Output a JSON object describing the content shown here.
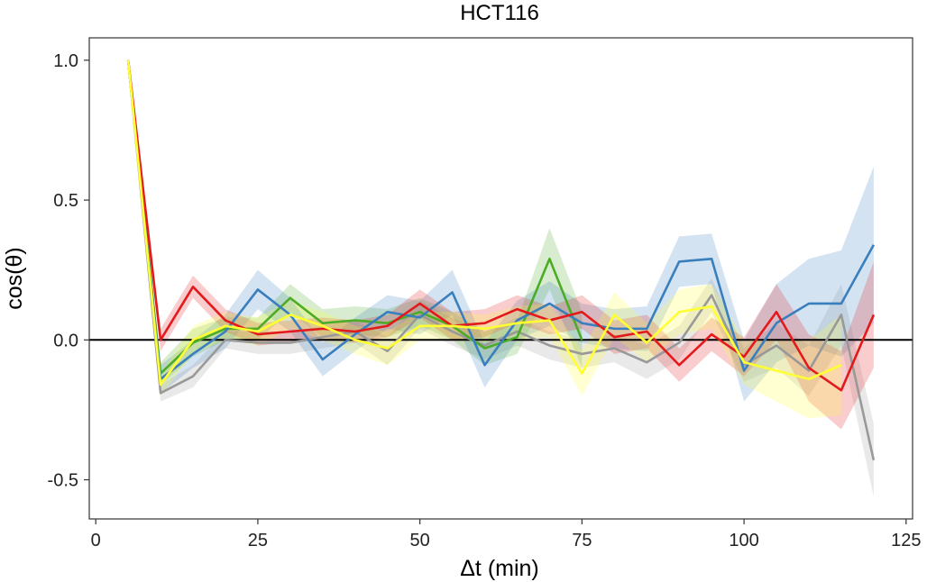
{
  "chart_data": {
    "type": "line",
    "title": "HCT116",
    "xlabel": "Δt (min)",
    "ylabel": "cos(θ)",
    "xlim": [
      -1,
      126
    ],
    "ylim": [
      -0.64,
      1.08
    ],
    "xticks": [
      0,
      25,
      50,
      75,
      100,
      125
    ],
    "yticks": [
      -0.5,
      0.0,
      0.5,
      1.0
    ],
    "xtick_labels": [
      "0",
      "25",
      "50",
      "75",
      "100",
      "125"
    ],
    "ytick_labels": [
      "-0.5",
      "0.0",
      "0.5",
      "1.0"
    ],
    "reference_line": 0,
    "grid": false,
    "legend": "none",
    "series": [
      {
        "color": "#999999",
        "x": [
          5,
          10,
          15,
          20,
          25,
          30,
          35,
          40,
          45,
          50,
          55,
          60,
          65,
          70,
          75,
          80,
          85,
          90,
          95,
          100,
          105,
          110,
          115,
          120
        ],
        "values": [
          1.0,
          -0.19,
          -0.13,
          0.0,
          -0.01,
          -0.01,
          0.01,
          0.03,
          -0.04,
          0.09,
          0.03,
          -0.02,
          0.03,
          -0.02,
          -0.05,
          -0.03,
          -0.08,
          -0.01,
          0.16,
          -0.09,
          -0.02,
          -0.11,
          0.09,
          -0.43
        ],
        "lower": [
          0.99,
          -0.22,
          -0.17,
          -0.03,
          -0.05,
          -0.05,
          -0.03,
          -0.01,
          -0.09,
          0.04,
          -0.02,
          -0.07,
          -0.02,
          -0.07,
          -0.1,
          -0.08,
          -0.14,
          -0.07,
          0.1,
          -0.15,
          -0.1,
          -0.2,
          -0.02,
          -0.56
        ],
        "upper": [
          1.0,
          -0.16,
          -0.09,
          0.03,
          0.03,
          0.03,
          0.05,
          0.07,
          0.01,
          0.14,
          0.08,
          0.03,
          0.08,
          0.03,
          0.0,
          0.02,
          -0.02,
          0.05,
          0.22,
          -0.03,
          0.06,
          -0.02,
          0.2,
          -0.3
        ]
      },
      {
        "color": "#4dac26",
        "x": [
          5,
          10,
          15,
          20,
          25,
          30,
          35,
          40,
          45,
          50,
          55,
          60,
          65,
          70,
          75
        ],
        "values": [
          1.0,
          -0.12,
          -0.01,
          0.04,
          0.04,
          0.15,
          0.06,
          0.07,
          0.06,
          0.1,
          0.05,
          -0.03,
          0.01,
          0.29,
          0.0
        ],
        "lower": [
          0.99,
          -0.16,
          -0.06,
          0.0,
          0.0,
          0.1,
          0.01,
          0.02,
          0.01,
          0.05,
          0.0,
          -0.09,
          -0.05,
          0.18,
          -0.1
        ],
        "upper": [
          1.0,
          -0.08,
          0.04,
          0.08,
          0.08,
          0.2,
          0.11,
          0.12,
          0.11,
          0.15,
          0.1,
          0.03,
          0.07,
          0.4,
          0.1
        ]
      },
      {
        "color": "#3a7fbd",
        "x": [
          5,
          10,
          15,
          20,
          25,
          30,
          35,
          40,
          45,
          50,
          55,
          60,
          65,
          70,
          75,
          80,
          85,
          90,
          95,
          100,
          105,
          110,
          115,
          120
        ],
        "values": [
          1.0,
          -0.14,
          -0.05,
          0.03,
          0.18,
          0.09,
          -0.07,
          0.02,
          0.1,
          0.08,
          0.17,
          -0.09,
          0.07,
          0.13,
          0.06,
          0.04,
          0.04,
          0.28,
          0.29,
          -0.11,
          0.06,
          0.13,
          0.13,
          0.34
        ],
        "lower": [
          0.99,
          -0.19,
          -0.1,
          -0.03,
          0.11,
          0.03,
          -0.13,
          -0.04,
          0.04,
          0.02,
          0.09,
          -0.17,
          0.0,
          0.05,
          -0.01,
          -0.03,
          -0.04,
          0.19,
          0.2,
          -0.22,
          -0.08,
          -0.02,
          -0.06,
          0.06
        ],
        "upper": [
          1.0,
          -0.09,
          0.0,
          0.09,
          0.25,
          0.15,
          -0.01,
          0.08,
          0.16,
          0.14,
          0.25,
          -0.01,
          0.14,
          0.21,
          0.13,
          0.11,
          0.12,
          0.37,
          0.38,
          0.0,
          0.2,
          0.29,
          0.32,
          0.62
        ]
      },
      {
        "color": "#e31a1c",
        "x": [
          5,
          10,
          15,
          20,
          25,
          30,
          35,
          40,
          45,
          50,
          55,
          60,
          65,
          70,
          75,
          80,
          85,
          90,
          95,
          100,
          105,
          110,
          115,
          120
        ],
        "values": [
          1.0,
          0.0,
          0.19,
          0.07,
          0.02,
          0.03,
          0.04,
          0.03,
          0.05,
          0.13,
          0.05,
          0.06,
          0.11,
          0.07,
          0.1,
          0.01,
          0.03,
          -0.09,
          0.02,
          -0.06,
          0.1,
          -0.1,
          -0.18,
          0.09
        ],
        "lower": [
          0.99,
          -0.04,
          0.15,
          0.03,
          -0.02,
          -0.01,
          0.0,
          -0.01,
          0.01,
          0.08,
          0.0,
          0.01,
          0.06,
          0.02,
          0.04,
          -0.05,
          -0.03,
          -0.15,
          -0.04,
          -0.13,
          0.0,
          -0.22,
          -0.32,
          -0.1
        ],
        "upper": [
          1.0,
          0.04,
          0.23,
          0.11,
          0.06,
          0.07,
          0.08,
          0.07,
          0.09,
          0.18,
          0.1,
          0.11,
          0.16,
          0.12,
          0.16,
          0.07,
          0.09,
          -0.03,
          0.08,
          0.01,
          0.2,
          0.02,
          -0.04,
          0.28
        ]
      },
      {
        "color": "#ffff33",
        "x": [
          5,
          10,
          15,
          20,
          25,
          30,
          35,
          40,
          45,
          50,
          55,
          60,
          65,
          70,
          75,
          80,
          85,
          90,
          95,
          100,
          105,
          110,
          115
        ],
        "values": [
          1.0,
          -0.16,
          0.0,
          0.05,
          0.03,
          0.09,
          0.05,
          0.0,
          -0.03,
          0.05,
          0.05,
          0.04,
          0.06,
          0.07,
          -0.12,
          0.09,
          -0.01,
          0.1,
          0.12,
          -0.08,
          -0.11,
          -0.14,
          -0.09
        ],
        "lower": [
          0.99,
          -0.2,
          -0.05,
          0.0,
          -0.02,
          0.04,
          0.0,
          -0.05,
          -0.09,
          0.0,
          0.0,
          -0.01,
          0.0,
          0.01,
          -0.2,
          0.01,
          -0.08,
          0.02,
          0.04,
          -0.16,
          -0.22,
          -0.28,
          -0.27
        ],
        "upper": [
          1.0,
          -0.12,
          0.05,
          0.1,
          0.08,
          0.14,
          0.1,
          0.05,
          0.03,
          0.1,
          0.1,
          0.09,
          0.12,
          0.13,
          -0.04,
          0.17,
          0.06,
          0.18,
          0.2,
          0.0,
          0.0,
          0.0,
          0.09
        ]
      }
    ]
  }
}
